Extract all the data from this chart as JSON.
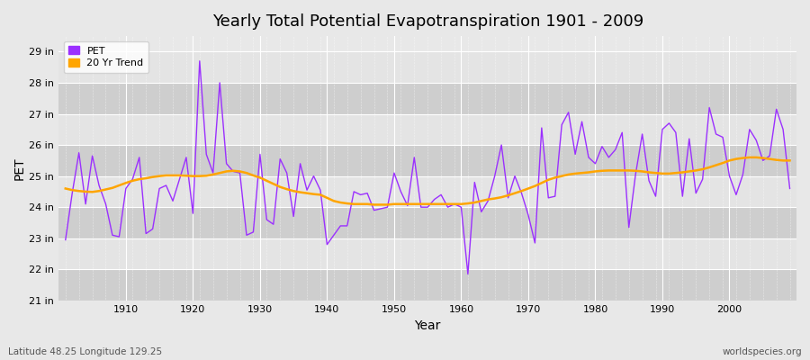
{
  "title": "Yearly Total Potential Evapotranspiration 1901 - 2009",
  "xlabel": "Year",
  "ylabel": "PET",
  "footnote_left": "Latitude 48.25 Longitude 129.25",
  "footnote_right": "worldspecies.org",
  "pet_color": "#9B30FF",
  "trend_color": "#FFA500",
  "bg_color": "#E8E8E8",
  "plot_bg_color": "#D8D8D8",
  "band_light": "#E4E4E4",
  "band_dark": "#CECECE",
  "grid_color": "#FFFFFF",
  "ylim": [
    21,
    29.5
  ],
  "yticks": [
    21,
    22,
    23,
    24,
    25,
    26,
    27,
    28,
    29
  ],
  "xlim": [
    1900,
    2010
  ],
  "years": [
    1901,
    1902,
    1903,
    1904,
    1905,
    1906,
    1907,
    1908,
    1909,
    1910,
    1911,
    1912,
    1913,
    1914,
    1915,
    1916,
    1917,
    1918,
    1919,
    1920,
    1921,
    1922,
    1923,
    1924,
    1925,
    1926,
    1927,
    1928,
    1929,
    1930,
    1931,
    1932,
    1933,
    1934,
    1935,
    1936,
    1937,
    1938,
    1939,
    1940,
    1941,
    1942,
    1943,
    1944,
    1945,
    1946,
    1947,
    1948,
    1949,
    1950,
    1951,
    1952,
    1953,
    1954,
    1955,
    1956,
    1957,
    1958,
    1959,
    1960,
    1961,
    1962,
    1963,
    1964,
    1965,
    1966,
    1967,
    1968,
    1969,
    1970,
    1971,
    1972,
    1973,
    1974,
    1975,
    1976,
    1977,
    1978,
    1979,
    1980,
    1981,
    1982,
    1983,
    1984,
    1985,
    1986,
    1987,
    1988,
    1989,
    1990,
    1991,
    1992,
    1993,
    1994,
    1995,
    1996,
    1997,
    1998,
    1999,
    2000,
    2001,
    2002,
    2003,
    2004,
    2005,
    2006,
    2007,
    2008,
    2009
  ],
  "pet": [
    22.95,
    24.45,
    25.75,
    24.1,
    25.65,
    24.7,
    24.1,
    23.1,
    23.05,
    24.6,
    24.9,
    25.6,
    23.15,
    23.3,
    24.6,
    24.7,
    24.2,
    24.9,
    25.6,
    23.8,
    28.7,
    25.7,
    25.1,
    28.0,
    25.4,
    25.15,
    25.1,
    23.1,
    23.2,
    25.7,
    23.6,
    23.45,
    25.55,
    25.1,
    23.7,
    25.4,
    24.55,
    25.0,
    24.55,
    22.8,
    23.1,
    23.4,
    23.4,
    24.5,
    24.4,
    24.45,
    23.9,
    23.95,
    24.0,
    25.1,
    24.5,
    24.05,
    25.6,
    24.0,
    24.0,
    24.25,
    24.4,
    24.0,
    24.1,
    24.0,
    21.85,
    24.8,
    23.85,
    24.2,
    25.0,
    26.0,
    24.3,
    25.0,
    24.45,
    23.75,
    22.85,
    26.55,
    24.3,
    24.35,
    26.65,
    27.05,
    25.7,
    26.75,
    25.6,
    25.4,
    25.95,
    25.6,
    25.85,
    26.4,
    23.35,
    25.05,
    26.35,
    24.85,
    24.35,
    26.5,
    26.7,
    26.4,
    24.35,
    26.2,
    24.45,
    24.9,
    27.2,
    26.35,
    26.25,
    25.0,
    24.4,
    25.05,
    26.5,
    26.15,
    25.5,
    25.65,
    27.15,
    26.5,
    24.6
  ],
  "trend": [
    24.6,
    24.55,
    24.52,
    24.5,
    24.49,
    24.52,
    24.57,
    24.62,
    24.7,
    24.78,
    24.85,
    24.9,
    24.93,
    24.97,
    25.0,
    25.02,
    25.02,
    25.02,
    25.01,
    25.0,
    25.0,
    25.01,
    25.05,
    25.1,
    25.15,
    25.17,
    25.15,
    25.1,
    25.02,
    24.95,
    24.85,
    24.75,
    24.65,
    24.58,
    24.52,
    24.48,
    24.45,
    24.42,
    24.4,
    24.3,
    24.2,
    24.15,
    24.12,
    24.1,
    24.1,
    24.1,
    24.08,
    24.08,
    24.08,
    24.1,
    24.1,
    24.1,
    24.1,
    24.1,
    24.1,
    24.1,
    24.1,
    24.1,
    24.1,
    24.1,
    24.12,
    24.15,
    24.2,
    24.25,
    24.28,
    24.32,
    24.38,
    24.45,
    24.52,
    24.6,
    24.68,
    24.78,
    24.88,
    24.95,
    25.0,
    25.05,
    25.08,
    25.1,
    25.12,
    25.15,
    25.17,
    25.18,
    25.18,
    25.18,
    25.18,
    25.17,
    25.15,
    25.12,
    25.1,
    25.08,
    25.08,
    25.1,
    25.12,
    25.15,
    25.18,
    25.22,
    25.28,
    25.35,
    25.42,
    25.5,
    25.55,
    25.58,
    25.6,
    25.6,
    25.58,
    25.55,
    25.52,
    25.5,
    25.5
  ]
}
